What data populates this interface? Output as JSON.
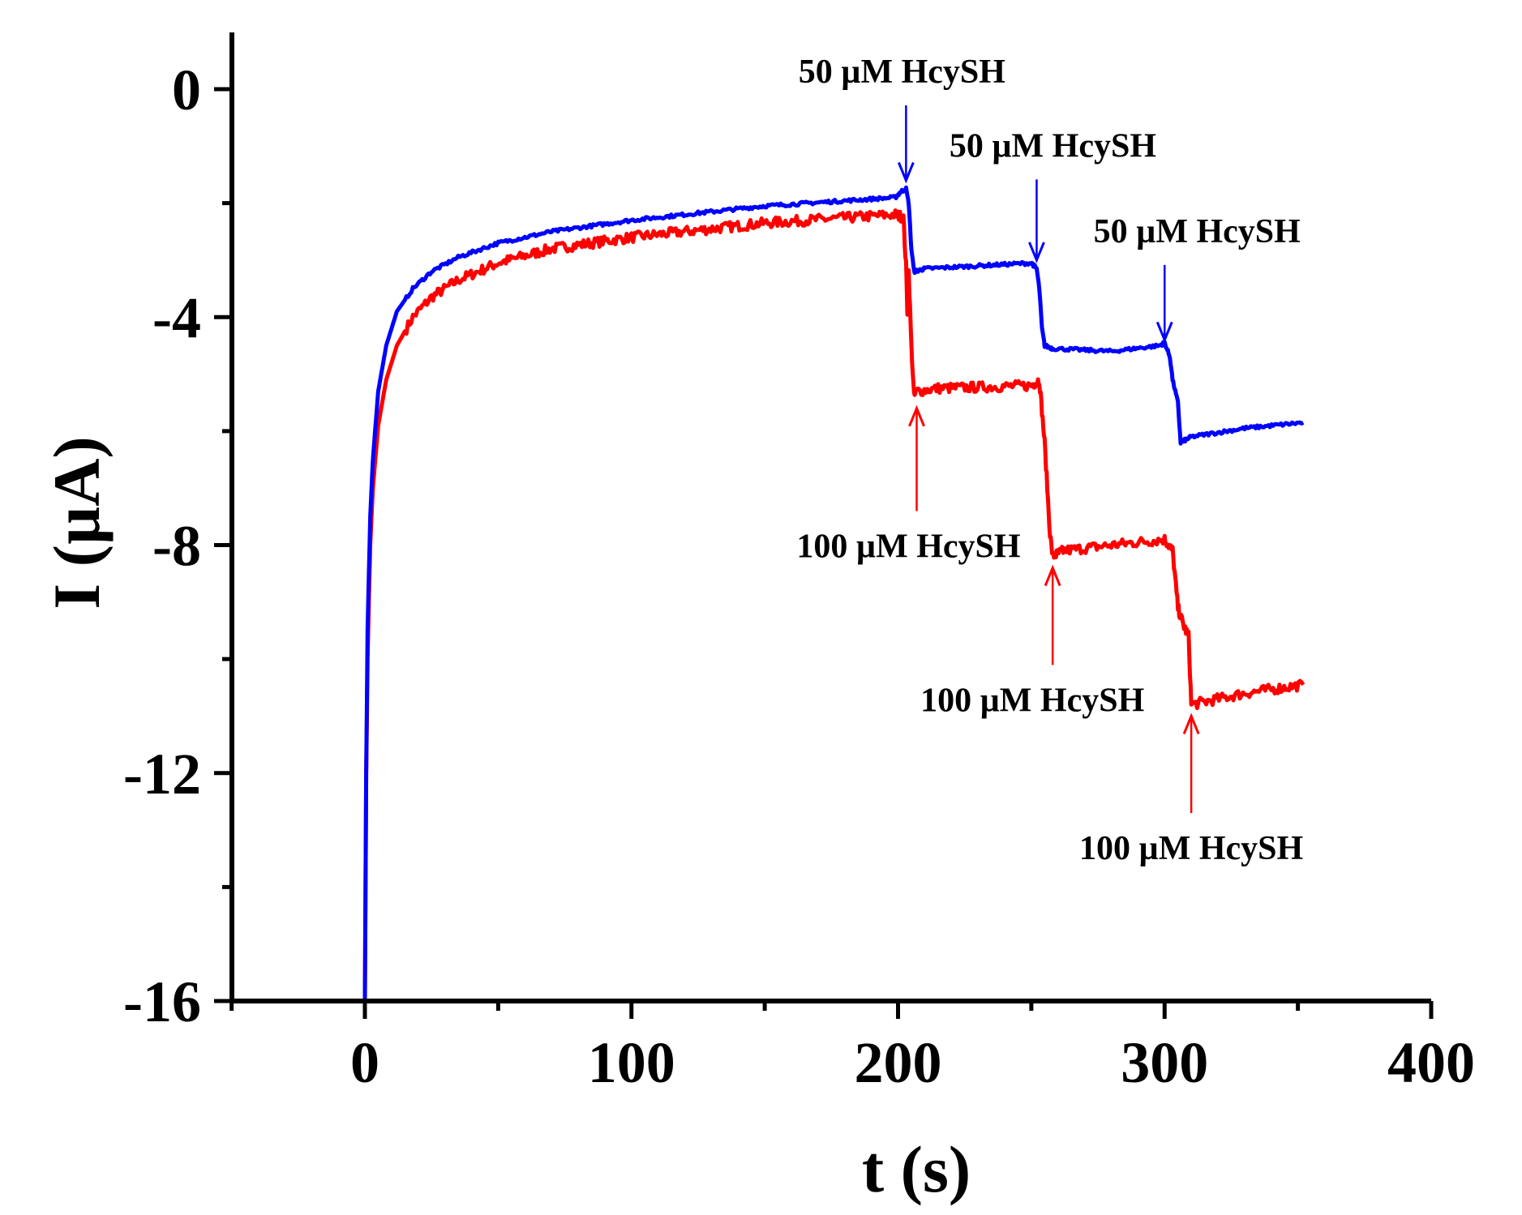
{
  "chart_data": {
    "type": "line",
    "xlabel": "t (s)",
    "ylabel": "I (µA)",
    "xlim": [
      -50,
      400
    ],
    "ylim": [
      -16,
      1
    ],
    "x_ticks": [
      0,
      100,
      200,
      300,
      400
    ],
    "y_ticks": [
      0,
      -4,
      -8,
      -12,
      -16
    ],
    "grid": false,
    "series": [
      {
        "name": "red",
        "color": "#ff0000",
        "noise": 0.09,
        "points": [
          [
            0,
            -16
          ],
          [
            0.5,
            -12
          ],
          [
            1,
            -10
          ],
          [
            2,
            -8
          ],
          [
            3,
            -7
          ],
          [
            5,
            -5.9
          ],
          [
            8,
            -5.1
          ],
          [
            12,
            -4.5
          ],
          [
            18,
            -4.0
          ],
          [
            25,
            -3.65
          ],
          [
            35,
            -3.35
          ],
          [
            50,
            -3.05
          ],
          [
            70,
            -2.8
          ],
          [
            100,
            -2.6
          ],
          [
            150,
            -2.35
          ],
          [
            199,
            -2.2
          ],
          [
            202,
            -2.25
          ],
          [
            203,
            -3.1
          ],
          [
            203.5,
            -3.9
          ],
          [
            204,
            -3.2
          ],
          [
            205,
            -4.5
          ],
          [
            206,
            -5.4
          ],
          [
            207,
            -5.3
          ],
          [
            215,
            -5.25
          ],
          [
            250,
            -5.2
          ],
          [
            253,
            -5.1
          ],
          [
            255,
            -6.2
          ],
          [
            256,
            -7.0
          ],
          [
            257,
            -7.8
          ],
          [
            258,
            -8.2
          ],
          [
            262,
            -8.1
          ],
          [
            280,
            -8.0
          ],
          [
            300,
            -7.9
          ],
          [
            303,
            -8.1
          ],
          [
            305,
            -9.1
          ],
          [
            307,
            -9.4
          ],
          [
            309,
            -9.6
          ],
          [
            310,
            -10.8
          ],
          [
            315,
            -10.75
          ],
          [
            330,
            -10.6
          ],
          [
            352,
            -10.45
          ]
        ]
      },
      {
        "name": "blue",
        "color": "#0000ff",
        "noise": 0.03,
        "points": [
          [
            0,
            -16
          ],
          [
            0.5,
            -12
          ],
          [
            1,
            -9.5
          ],
          [
            2,
            -7.5
          ],
          [
            3,
            -6.5
          ],
          [
            5,
            -5.3
          ],
          [
            8,
            -4.5
          ],
          [
            12,
            -3.9
          ],
          [
            18,
            -3.5
          ],
          [
            25,
            -3.2
          ],
          [
            35,
            -2.95
          ],
          [
            50,
            -2.7
          ],
          [
            70,
            -2.5
          ],
          [
            100,
            -2.3
          ],
          [
            150,
            -2.05
          ],
          [
            199,
            -1.9
          ],
          [
            201,
            -1.8
          ],
          [
            203,
            -1.75
          ],
          [
            204,
            -2.0
          ],
          [
            205,
            -2.8
          ],
          [
            206,
            -3.2
          ],
          [
            210,
            -3.15
          ],
          [
            230,
            -3.1
          ],
          [
            250,
            -3.05
          ],
          [
            252,
            -3.15
          ],
          [
            253,
            -3.5
          ],
          [
            254,
            -4.2
          ],
          [
            255,
            -4.5
          ],
          [
            258,
            -4.55
          ],
          [
            280,
            -4.6
          ],
          [
            298,
            -4.5
          ],
          [
            300,
            -4.45
          ],
          [
            302,
            -4.7
          ],
          [
            303,
            -5.1
          ],
          [
            305,
            -5.5
          ],
          [
            306,
            -6.2
          ],
          [
            310,
            -6.1
          ],
          [
            330,
            -5.95
          ],
          [
            352,
            -5.85
          ]
        ]
      }
    ],
    "annotations": [
      {
        "text": "50 µM HcySH",
        "color": "#0000ff",
        "x": 203,
        "y_text": 0.0,
        "y_head": -1.6,
        "direction": "down",
        "anchor": "middle",
        "dx": -5
      },
      {
        "text": "50 µM HcySH",
        "color": "#0000ff",
        "x": 252,
        "y_text": -1.3,
        "y_head": -3.0,
        "direction": "down",
        "anchor": "middle",
        "dx": 20
      },
      {
        "text": "50 µM HcySH",
        "color": "#0000ff",
        "x": 300,
        "y_text": -2.8,
        "y_head": -4.4,
        "direction": "down",
        "anchor": "middle",
        "dx": 40
      },
      {
        "text": "100 µM HcySH",
        "color": "#ff0000",
        "x": 207,
        "y_text": -7.9,
        "y_head": -5.6,
        "direction": "up",
        "anchor": "middle",
        "dx": -10
      },
      {
        "text": "100 µM HcySH",
        "color": "#ff0000",
        "x": 258,
        "y_text": -10.6,
        "y_head": -8.4,
        "direction": "up",
        "anchor": "middle",
        "dx": -25
      },
      {
        "text": "100 µM HcySH",
        "color": "#ff0000",
        "x": 310,
        "y_text": -13.2,
        "y_head": -11.0,
        "direction": "up",
        "anchor": "middle",
        "dx": 0
      }
    ]
  }
}
